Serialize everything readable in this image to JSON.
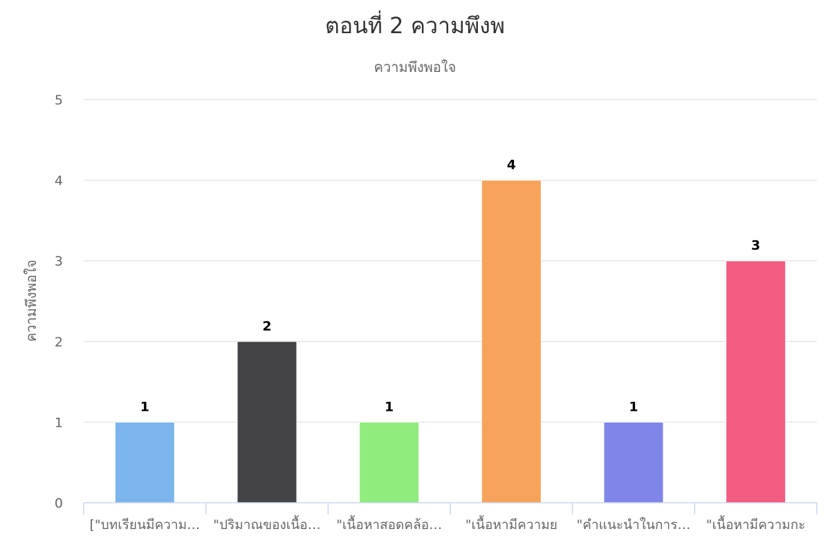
{
  "chart_data": {
    "type": "bar",
    "title": "ตอนที่ 2 ความพึงพ",
    "subtitle": "ความพึงพอใจ",
    "ylabel": "ความพึงพอใจ",
    "xlabel": "",
    "ylim": [
      0,
      5
    ],
    "yticks": [
      0,
      1,
      2,
      3,
      4,
      5
    ],
    "grid": true,
    "legend": "none",
    "categories": [
      "[\"บทเรียนมีความ…",
      "\"ปริมาณของเนื้อ…",
      "\"เนื้อหาสอดคล้อ…",
      "\"เนื้อหามีความย",
      "\"คำแนะนำในการ…",
      "\"เนื้อหามีความกะ"
    ],
    "values": [
      1,
      2,
      1,
      4,
      1,
      3
    ],
    "data_labels": [
      "1",
      "2",
      "1",
      "4",
      "1",
      "3"
    ],
    "colors": [
      "#7cb5ec",
      "#434348",
      "#90ed7d",
      "#f7a35c",
      "#8085e9",
      "#f15c80"
    ]
  }
}
